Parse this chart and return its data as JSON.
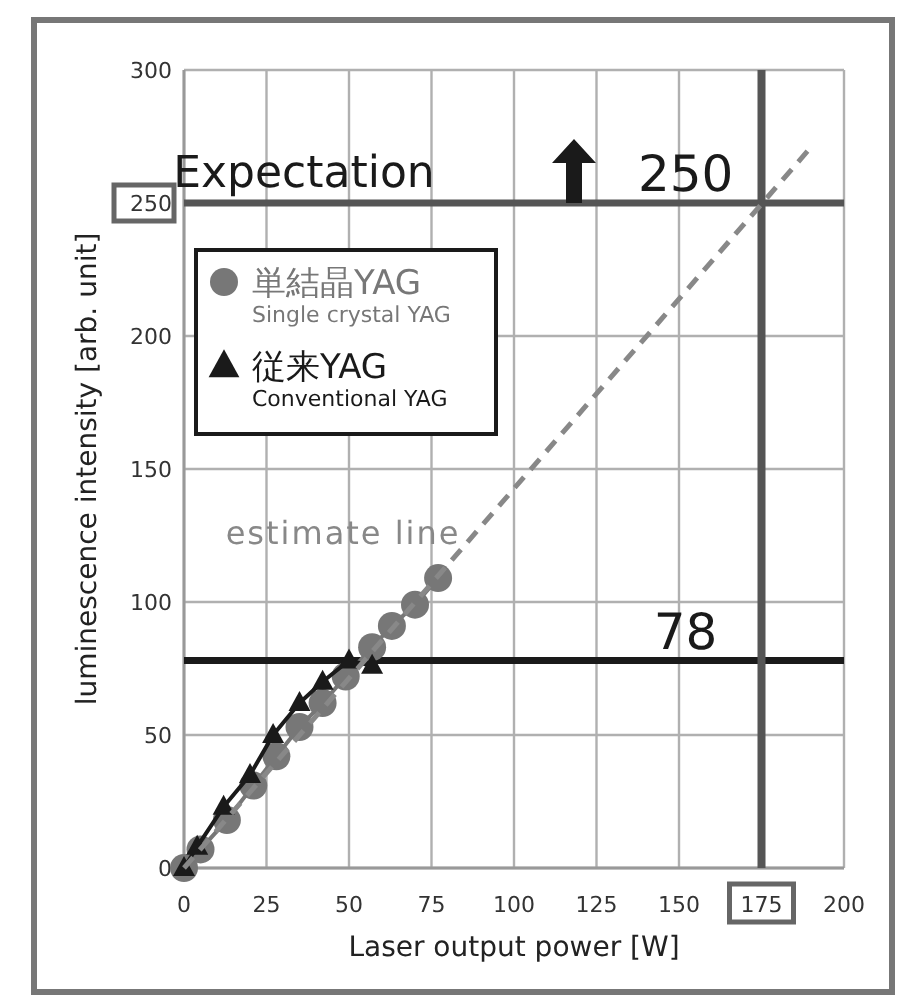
{
  "chart_data": {
    "type": "line",
    "xlabel": "Laser output power [W]",
    "ylabel": "luminescence intensity [arb. unit]",
    "xlim": [
      0,
      200
    ],
    "ylim": [
      0,
      300
    ],
    "xticks": [
      0,
      25,
      50,
      75,
      100,
      125,
      150,
      175,
      200
    ],
    "yticks": [
      0,
      50,
      100,
      150,
      200,
      250,
      300
    ],
    "grid": true,
    "legend": "top left",
    "series": [
      {
        "name": "単結晶YAG\nSingle crystal YAG",
        "color": "#777777",
        "marker": "circle",
        "x": [
          0,
          5,
          13,
          21,
          28,
          35,
          42,
          49,
          57,
          63,
          70,
          77
        ],
        "values": [
          0,
          7,
          18,
          31,
          42,
          53,
          62,
          72,
          83,
          91,
          99,
          109
        ]
      },
      {
        "name": "従来YAG\nConventional YAG",
        "color": "#1a1a1a",
        "marker": "triangle",
        "x": [
          0,
          4,
          12,
          20,
          27,
          35,
          42,
          50,
          57
        ],
        "values": [
          0,
          8,
          23,
          35,
          50,
          62,
          70,
          78,
          76
        ]
      },
      {
        "name": "estimate line",
        "color": "#888888",
        "marker": "none",
        "line_style": "dashed",
        "x": [
          0,
          190
        ],
        "values": [
          0,
          271
        ]
      }
    ],
    "ref_lines": [
      {
        "axis": "y",
        "value": 78,
        "label": "78",
        "color": "#1a1a1a"
      },
      {
        "axis": "x",
        "value": 175,
        "color": "#555555"
      },
      {
        "axis": "y",
        "value": 250,
        "label": "250",
        "color": "#555555"
      }
    ],
    "annotations": [
      "Expectation"
    ]
  }
}
